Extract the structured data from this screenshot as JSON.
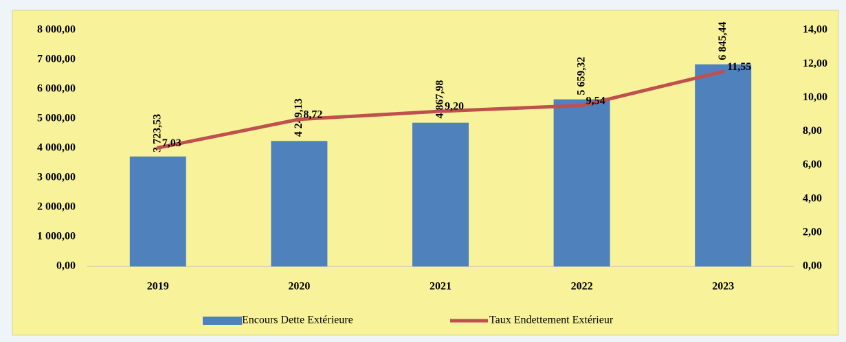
{
  "chart_data": {
    "type": "bar",
    "categories": [
      "2019",
      "2020",
      "2021",
      "2022",
      "2023"
    ],
    "series": [
      {
        "name": "Encours Dette Extérieure",
        "type": "bar",
        "color": "#4f81bd",
        "values": [
          3723.53,
          4249.13,
          4867.98,
          5659.32,
          6845.44
        ],
        "value_labels": [
          "3 723,53",
          "4 249,13",
          "4 867,98",
          "5 659,32",
          "6 845,44"
        ]
      },
      {
        "name": "Taux Endettement Extérieur",
        "type": "line",
        "axis": "y2",
        "color": "#c0504d",
        "values": [
          7.03,
          8.72,
          9.2,
          9.54,
          11.55
        ],
        "value_labels": [
          "7,03",
          "8,72",
          "9,20",
          "9,54",
          "11,55"
        ]
      }
    ],
    "ylim": [
      0,
      8000
    ],
    "yticks": [
      {
        "value": 0,
        "label": "0,00"
      },
      {
        "value": 1000,
        "label": "1 000,00"
      },
      {
        "value": 2000,
        "label": "2 000,00"
      },
      {
        "value": 3000,
        "label": "3 000,00"
      },
      {
        "value": 4000,
        "label": "4 000,00"
      },
      {
        "value": 5000,
        "label": "5 000,00"
      },
      {
        "value": 6000,
        "label": "6 000,00"
      },
      {
        "value": 7000,
        "label": "7 000,00"
      },
      {
        "value": 8000,
        "label": "8 000,00"
      }
    ],
    "y2lim": [
      0,
      14
    ],
    "y2ticks": [
      {
        "value": 0,
        "label": "0,00"
      },
      {
        "value": 2,
        "label": "2,00"
      },
      {
        "value": 4,
        "label": "4,00"
      },
      {
        "value": 6,
        "label": "6,00"
      },
      {
        "value": 8,
        "label": "8,00"
      },
      {
        "value": 10,
        "label": "10,00"
      },
      {
        "value": 12,
        "label": "12,00"
      },
      {
        "value": 14,
        "label": "14,00"
      }
    ],
    "grid": false,
    "legend": "bottom"
  }
}
